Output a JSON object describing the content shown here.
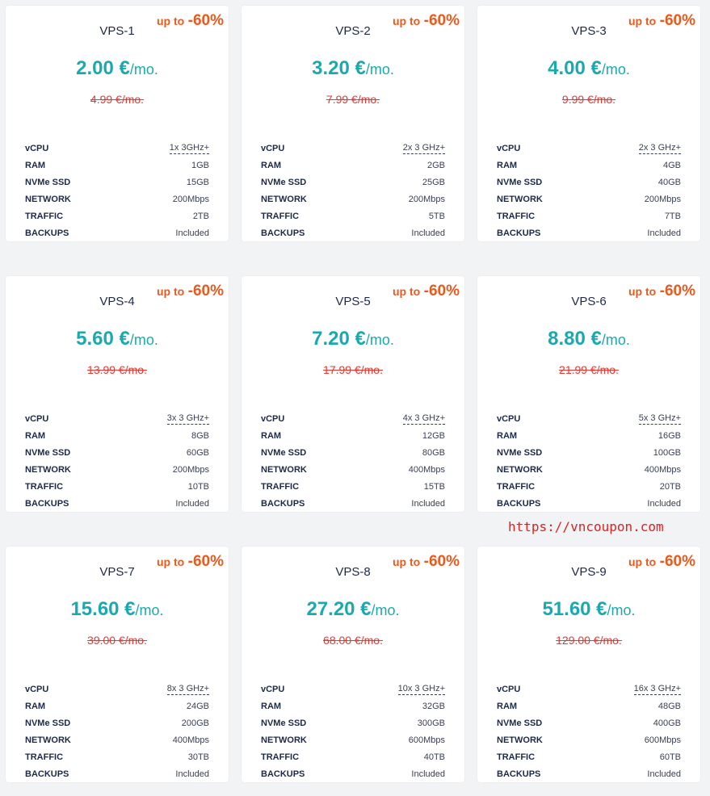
{
  "plans": [
    {
      "name": "VPS-1",
      "discount_prefix": "up to",
      "discount": "-60%",
      "price": "2.00 €",
      "unit": "/mo.",
      "old_price": "4.99 €/mo.",
      "specs": [
        {
          "label": "vCPU",
          "value": "1x 3GHz+"
        },
        {
          "label": "RAM",
          "value": "1GB"
        },
        {
          "label": "NVMe SSD",
          "value": "15GB"
        },
        {
          "label": "NETWORK",
          "value": "200Mbps"
        },
        {
          "label": "TRAFFIC",
          "value": "2TB"
        },
        {
          "label": "BACKUPS",
          "value": "Included"
        }
      ]
    },
    {
      "name": "VPS-2",
      "discount_prefix": "up to",
      "discount": "-60%",
      "price": "3.20 €",
      "unit": "/mo.",
      "old_price": "7.99 €/mo.",
      "specs": [
        {
          "label": "vCPU",
          "value": "2x 3 GHz+"
        },
        {
          "label": "RAM",
          "value": "2GB"
        },
        {
          "label": "NVMe SSD",
          "value": "25GB"
        },
        {
          "label": "NETWORK",
          "value": "200Mbps"
        },
        {
          "label": "TRAFFIC",
          "value": "5TB"
        },
        {
          "label": "BACKUPS",
          "value": "Included"
        }
      ]
    },
    {
      "name": "VPS-3",
      "discount_prefix": "up to",
      "discount": "-60%",
      "price": "4.00 €",
      "unit": "/mo.",
      "old_price": "9.99 €/mo.",
      "specs": [
        {
          "label": "vCPU",
          "value": "2x 3 GHz+"
        },
        {
          "label": "RAM",
          "value": "4GB"
        },
        {
          "label": "NVMe SSD",
          "value": "40GB"
        },
        {
          "label": "NETWORK",
          "value": "200Mbps"
        },
        {
          "label": "TRAFFIC",
          "value": "7TB"
        },
        {
          "label": "BACKUPS",
          "value": "Included"
        }
      ]
    },
    {
      "name": "VPS-4",
      "discount_prefix": "up to",
      "discount": "-60%",
      "price": "5.60 €",
      "unit": "/mo.",
      "old_price": "13.99 €/mo.",
      "specs": [
        {
          "label": "vCPU",
          "value": "3x 3 GHz+"
        },
        {
          "label": "RAM",
          "value": "8GB"
        },
        {
          "label": "NVMe SSD",
          "value": "60GB"
        },
        {
          "label": "NETWORK",
          "value": "200Mbps"
        },
        {
          "label": "TRAFFIC",
          "value": "10TB"
        },
        {
          "label": "BACKUPS",
          "value": "Included"
        }
      ]
    },
    {
      "name": "VPS-5",
      "discount_prefix": "up to",
      "discount": "-60%",
      "price": "7.20 €",
      "unit": "/mo.",
      "old_price": "17.99 €/mo.",
      "specs": [
        {
          "label": "vCPU",
          "value": "4x 3 GHz+"
        },
        {
          "label": "RAM",
          "value": "12GB"
        },
        {
          "label": "NVMe SSD",
          "value": "80GB"
        },
        {
          "label": "NETWORK",
          "value": "400Mbps"
        },
        {
          "label": "TRAFFIC",
          "value": "15TB"
        },
        {
          "label": "BACKUPS",
          "value": "Included"
        }
      ]
    },
    {
      "name": "VPS-6",
      "discount_prefix": "up to",
      "discount": "-60%",
      "price": "8.80 €",
      "unit": "/mo.",
      "old_price": "21.99 €/mo.",
      "specs": [
        {
          "label": "vCPU",
          "value": "5x 3 GHz+"
        },
        {
          "label": "RAM",
          "value": "16GB"
        },
        {
          "label": "NVMe SSD",
          "value": "100GB"
        },
        {
          "label": "NETWORK",
          "value": "400Mbps"
        },
        {
          "label": "TRAFFIC",
          "value": "20TB"
        },
        {
          "label": "BACKUPS",
          "value": "Included"
        }
      ]
    },
    {
      "name": "VPS-7",
      "discount_prefix": "up to",
      "discount": "-60%",
      "price": "15.60 €",
      "unit": "/mo.",
      "old_price": "39.00 €/mo.",
      "specs": [
        {
          "label": "vCPU",
          "value": "8x 3 GHz+"
        },
        {
          "label": "RAM",
          "value": "24GB"
        },
        {
          "label": "NVMe SSD",
          "value": "200GB"
        },
        {
          "label": "NETWORK",
          "value": "400Mbps"
        },
        {
          "label": "TRAFFIC",
          "value": "30TB"
        },
        {
          "label": "BACKUPS",
          "value": "Included"
        }
      ]
    },
    {
      "name": "VPS-8",
      "discount_prefix": "up to",
      "discount": "-60%",
      "price": "27.20 €",
      "unit": "/mo.",
      "old_price": "68.00 €/mo.",
      "specs": [
        {
          "label": "vCPU",
          "value": "10x 3 GHz+"
        },
        {
          "label": "RAM",
          "value": "32GB"
        },
        {
          "label": "NVMe SSD",
          "value": "300GB"
        },
        {
          "label": "NETWORK",
          "value": "600Mbps"
        },
        {
          "label": "TRAFFIC",
          "value": "40TB"
        },
        {
          "label": "BACKUPS",
          "value": "Included"
        }
      ]
    },
    {
      "name": "VPS-9",
      "discount_prefix": "up to",
      "discount": "-60%",
      "price": "51.60 €",
      "unit": "/mo.",
      "old_price": "129.00 €/mo.",
      "specs": [
        {
          "label": "vCPU",
          "value": "16x 3 GHz+"
        },
        {
          "label": "RAM",
          "value": "48GB"
        },
        {
          "label": "NVMe SSD",
          "value": "400GB"
        },
        {
          "label": "NETWORK",
          "value": "600Mbps"
        },
        {
          "label": "TRAFFIC",
          "value": "60TB"
        },
        {
          "label": "BACKUPS",
          "value": "Included"
        }
      ]
    }
  ],
  "watermark": "https://vncoupon.com",
  "colors": {
    "accent": "#19aab1",
    "discount": "#e85a1e",
    "old_price": "#e8372f",
    "text": "#1d2a47",
    "watermark": "#e02020"
  }
}
